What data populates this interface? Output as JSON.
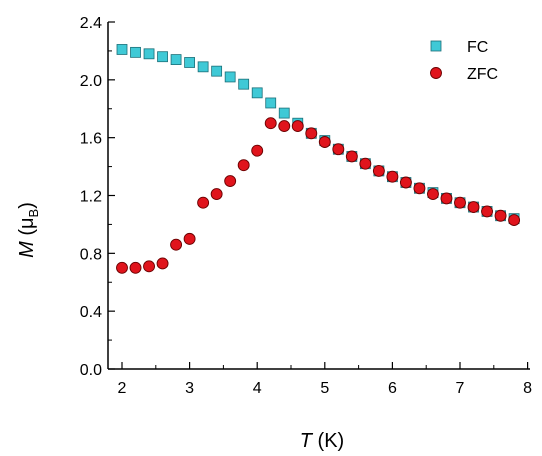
{
  "chart_data": {
    "type": "scatter",
    "title": "",
    "xlabel": {
      "symbol": "T",
      "unit": "(K)"
    },
    "ylabel": {
      "symbol": "M",
      "unit_open": "(",
      "unit_mu": "μ",
      "unit_sub": "B",
      "unit_close": ")"
    },
    "xlim": [
      1.8,
      7.9
    ],
    "ylim": [
      0.0,
      2.4
    ],
    "xticks": [
      2,
      3,
      4,
      5,
      6,
      7,
      8
    ],
    "xtick_labels": [
      "2",
      "3",
      "4",
      "5",
      "6",
      "7",
      "8"
    ],
    "yticks": [
      0.0,
      0.4,
      0.8,
      1.2,
      1.6,
      2.0,
      2.4
    ],
    "ytick_labels": [
      "0.0",
      "0.4",
      "0.8",
      "1.2",
      "1.6",
      "2.0",
      "2.4"
    ],
    "grid": false,
    "legend": "top-right",
    "series": [
      {
        "name": "FC",
        "marker": "square",
        "color": "#3fc9d6",
        "x": [
          2.0,
          2.2,
          2.4,
          2.6,
          2.8,
          3.0,
          3.2,
          3.4,
          3.6,
          3.8,
          4.0,
          4.2,
          4.4,
          4.6,
          4.8,
          5.0,
          5.2,
          5.4,
          5.6,
          5.8,
          6.0,
          6.2,
          6.4,
          6.6,
          6.8,
          7.0,
          7.2,
          7.4,
          7.6,
          7.8
        ],
        "y": [
          2.21,
          2.19,
          2.18,
          2.16,
          2.14,
          2.12,
          2.09,
          2.06,
          2.02,
          1.97,
          1.91,
          1.84,
          1.77,
          1.7,
          1.63,
          1.58,
          1.52,
          1.47,
          1.42,
          1.37,
          1.33,
          1.29,
          1.25,
          1.22,
          1.18,
          1.15,
          1.12,
          1.09,
          1.06,
          1.04
        ]
      },
      {
        "name": "ZFC",
        "marker": "circle",
        "color": "#e0141c",
        "x": [
          2.0,
          2.2,
          2.4,
          2.6,
          2.8,
          3.0,
          3.2,
          3.4,
          3.6,
          3.8,
          4.0,
          4.2,
          4.4,
          4.6,
          4.8,
          5.0,
          5.2,
          5.4,
          5.6,
          5.8,
          6.0,
          6.2,
          6.4,
          6.6,
          6.8,
          7.0,
          7.2,
          7.4,
          7.6,
          7.8
        ],
        "y": [
          0.7,
          0.7,
          0.71,
          0.73,
          0.86,
          0.9,
          1.15,
          1.21,
          1.3,
          1.41,
          1.51,
          1.7,
          1.68,
          1.68,
          1.63,
          1.57,
          1.52,
          1.47,
          1.42,
          1.37,
          1.33,
          1.29,
          1.25,
          1.21,
          1.18,
          1.15,
          1.12,
          1.09,
          1.06,
          1.03
        ]
      }
    ]
  }
}
